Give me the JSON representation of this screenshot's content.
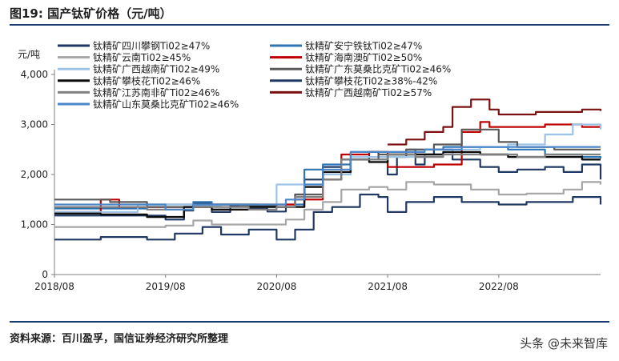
{
  "title": "图19: 国产钛矿价格（元/吨）",
  "source": "资料来源：百川盈孚，国信证券经济研究所整理",
  "watermark": "头条 @未来智库",
  "chart_data": {
    "type": "line",
    "title": "图19: 国产钛矿价格（元/吨）",
    "xlabel": "",
    "ylabel": "元/吨",
    "ylim": [
      0,
      4000
    ],
    "xlim": [
      "2018-08",
      "2023-07"
    ],
    "x_ticks": [
      "2018/08",
      "2019/08",
      "2020/08",
      "2021/08",
      "2022/08"
    ],
    "y_ticks": [
      "0",
      "1,000",
      "2,000",
      "3,000",
      "4,000"
    ],
    "grid": false,
    "legend_position": "top-left",
    "series": [
      {
        "name": "钛精矿四川攀钢Ti02≥47%",
        "color": "#1f3864",
        "width": 2.2,
        "points": [
          [
            "2018-08",
            1180
          ],
          [
            "2019-03",
            1180
          ],
          [
            "2019-08",
            1100
          ],
          [
            "2019-10",
            1280
          ],
          [
            "2019-11",
            1420
          ],
          [
            "2020-01",
            1250
          ],
          [
            "2020-03",
            1380
          ],
          [
            "2020-05",
            1320
          ],
          [
            "2020-07",
            1260
          ],
          [
            "2020-09",
            1350
          ],
          [
            "2020-10",
            1600
          ],
          [
            "2020-11",
            1900
          ],
          [
            "2021-01",
            2150
          ],
          [
            "2021-03",
            2300
          ],
          [
            "2021-05",
            2300
          ],
          [
            "2021-06",
            2450
          ],
          [
            "2021-07",
            2300
          ],
          [
            "2021-08",
            2000
          ],
          [
            "2021-09",
            2350
          ],
          [
            "2021-10",
            2500
          ],
          [
            "2021-11",
            2200
          ],
          [
            "2021-12",
            2400
          ],
          [
            "2022-01",
            2500
          ],
          [
            "2022-03",
            2300
          ],
          [
            "2022-06",
            2150
          ],
          [
            "2022-08",
            2050
          ],
          [
            "2022-10",
            2100
          ],
          [
            "2023-01",
            2150
          ],
          [
            "2023-03",
            2050
          ],
          [
            "2023-05",
            2200
          ],
          [
            "2023-07",
            1900
          ]
        ]
      },
      {
        "name": "钛精矿安宁铁钛Ti02≥47%",
        "color": "#2e75b6",
        "width": 2.2,
        "points": [
          [
            "2018-08",
            1320
          ],
          [
            "2019-02",
            1320
          ],
          [
            "2019-06",
            1400
          ],
          [
            "2019-11",
            1450
          ],
          [
            "2020-01",
            1400
          ],
          [
            "2020-06",
            1350
          ],
          [
            "2020-09",
            1400
          ],
          [
            "2020-11",
            2100
          ],
          [
            "2021-01",
            2200
          ],
          [
            "2021-04",
            2450
          ],
          [
            "2021-08",
            2450
          ],
          [
            "2021-11",
            2500
          ],
          [
            "2022-02",
            2550
          ],
          [
            "2022-06",
            2550
          ],
          [
            "2022-09",
            2500
          ],
          [
            "2023-01",
            2400
          ],
          [
            "2023-05",
            2350
          ],
          [
            "2023-07",
            2320
          ]
        ]
      },
      {
        "name": "钛精矿云南Ti02≥45%",
        "color": "#a6a6a6",
        "width": 2.2,
        "points": [
          [
            "2018-08",
            950
          ],
          [
            "2019-02",
            950
          ],
          [
            "2019-08",
            980
          ],
          [
            "2019-11",
            1080
          ],
          [
            "2020-01",
            1000
          ],
          [
            "2020-05",
            1000
          ],
          [
            "2020-09",
            1100
          ],
          [
            "2020-11",
            1300
          ],
          [
            "2021-01",
            1450
          ],
          [
            "2021-03",
            1700
          ],
          [
            "2021-06",
            1750
          ],
          [
            "2021-08",
            1700
          ],
          [
            "2021-10",
            1850
          ],
          [
            "2022-01",
            1800
          ],
          [
            "2022-05",
            1700
          ],
          [
            "2022-08",
            1600
          ],
          [
            "2022-11",
            1620
          ],
          [
            "2023-03",
            1700
          ],
          [
            "2023-05",
            1850
          ],
          [
            "2023-07",
            1800
          ]
        ]
      },
      {
        "name": "钛精矿海南澳矿Ti02≥50%",
        "color": "#c00000",
        "width": 2.2,
        "points": [
          [
            "2018-08",
            1250
          ],
          [
            "2018-12",
            1250
          ],
          [
            "2019-01",
            1500
          ],
          [
            "2019-03",
            1350
          ],
          [
            "2019-08",
            1350
          ],
          [
            "2020-01",
            1400
          ],
          [
            "2020-08",
            1400
          ],
          [
            "2020-10",
            1500
          ],
          [
            "2021-01",
            1900
          ],
          [
            "2021-03",
            2400
          ],
          [
            "2021-06",
            2450
          ],
          [
            "2021-08",
            2150
          ],
          [
            "2021-11",
            2150
          ],
          [
            "2022-01",
            2200
          ],
          [
            "2022-04",
            2850
          ],
          [
            "2022-06",
            3050
          ],
          [
            "2022-07",
            2950
          ],
          [
            "2022-09",
            2950
          ],
          [
            "2023-01",
            3000
          ],
          [
            "2023-05",
            2950
          ],
          [
            "2023-07",
            2980
          ]
        ]
      },
      {
        "name": "钛精矿广西越南矿Ti02≥49%",
        "color": "#9dc3e6",
        "width": 2.2,
        "points": [
          [
            "2018-08",
            1250
          ],
          [
            "2019-02",
            1250
          ],
          [
            "2019-05",
            1400
          ],
          [
            "2019-11",
            1380
          ],
          [
            "2020-02",
            1350
          ],
          [
            "2020-07",
            1350
          ],
          [
            "2020-08",
            1800
          ],
          [
            "2020-11",
            1800
          ],
          [
            "2021-01",
            2000
          ],
          [
            "2021-04",
            2350
          ],
          [
            "2021-08",
            2350
          ],
          [
            "2021-12",
            2400
          ],
          [
            "2022-03",
            2500
          ],
          [
            "2022-06",
            2550
          ],
          [
            "2022-09",
            2600
          ],
          [
            "2023-01",
            2800
          ],
          [
            "2023-04",
            3000
          ],
          [
            "2023-07",
            2900
          ]
        ]
      },
      {
        "name": "钛精矿广东莫桑比克矿Ti02≥46%",
        "color": "#595959",
        "width": 2.2,
        "points": [
          [
            "2018-08",
            1500
          ],
          [
            "2019-02",
            1450
          ],
          [
            "2019-06",
            1350
          ],
          [
            "2019-11",
            1400
          ],
          [
            "2020-04",
            1380
          ],
          [
            "2020-08",
            1350
          ],
          [
            "2020-10",
            1600
          ],
          [
            "2021-01",
            1900
          ],
          [
            "2021-03",
            2300
          ],
          [
            "2021-07",
            2400
          ],
          [
            "2021-10",
            2500
          ],
          [
            "2022-01",
            2600
          ],
          [
            "2022-04",
            2900
          ],
          [
            "2022-06",
            2900
          ],
          [
            "2022-08",
            2650
          ],
          [
            "2022-10",
            2550
          ],
          [
            "2023-02",
            2500
          ],
          [
            "2023-07",
            2500
          ]
        ]
      },
      {
        "name": "钛精矿攀枝花Ti02≥46%",
        "color": "#0d0d0d",
        "width": 2.4,
        "points": [
          [
            "2018-08",
            1220
          ],
          [
            "2019-01",
            1200
          ],
          [
            "2019-06",
            1150
          ],
          [
            "2019-10",
            1350
          ],
          [
            "2020-01",
            1300
          ],
          [
            "2020-05",
            1350
          ],
          [
            "2020-09",
            1350
          ],
          [
            "2020-11",
            1750
          ],
          [
            "2021-01",
            2050
          ],
          [
            "2021-04",
            2300
          ],
          [
            "2021-06",
            2250
          ],
          [
            "2021-08",
            2400
          ],
          [
            "2021-11",
            2400
          ],
          [
            "2022-02",
            2450
          ],
          [
            "2022-06",
            2400
          ],
          [
            "2022-09",
            2350
          ],
          [
            "2023-01",
            2350
          ],
          [
            "2023-05",
            2300
          ],
          [
            "2023-07",
            2300
          ]
        ]
      },
      {
        "name": "钛精矿攀枝花Ti02≥38%-42%",
        "color": "#203864",
        "width": 2.2,
        "points": [
          [
            "2018-08",
            700
          ],
          [
            "2019-01",
            750
          ],
          [
            "2019-06",
            700
          ],
          [
            "2019-09",
            820
          ],
          [
            "2019-12",
            950
          ],
          [
            "2020-02",
            800
          ],
          [
            "2020-05",
            900
          ],
          [
            "2020-08",
            700
          ],
          [
            "2020-10",
            900
          ],
          [
            "2020-12",
            1250
          ],
          [
            "2021-02",
            1350
          ],
          [
            "2021-05",
            1600
          ],
          [
            "2021-07",
            1550
          ],
          [
            "2021-08",
            1250
          ],
          [
            "2021-10",
            1450
          ],
          [
            "2022-01",
            1550
          ],
          [
            "2022-04",
            1450
          ],
          [
            "2022-08",
            1400
          ],
          [
            "2022-11",
            1450
          ],
          [
            "2023-04",
            1550
          ],
          [
            "2023-06",
            1550
          ],
          [
            "2023-07",
            1400
          ]
        ]
      },
      {
        "name": "钛精矿江苏南非矿Ti02≥46%",
        "color": "#7f7f7f",
        "width": 2.2,
        "points": [
          [
            "2018-08",
            1350
          ],
          [
            "2019-02",
            1350
          ],
          [
            "2019-06",
            1300
          ],
          [
            "2019-11",
            1350
          ],
          [
            "2020-05",
            1300
          ],
          [
            "2020-08",
            1350
          ],
          [
            "2020-10",
            1550
          ],
          [
            "2021-01",
            1900
          ],
          [
            "2021-03",
            2300
          ],
          [
            "2021-08",
            2400
          ],
          [
            "2021-11",
            2350
          ],
          [
            "2022-02",
            2400
          ],
          [
            "2022-06",
            2400
          ],
          [
            "2022-10",
            2350
          ],
          [
            "2023-01",
            2400
          ],
          [
            "2023-05",
            2400
          ],
          [
            "2023-07",
            2400
          ]
        ]
      },
      {
        "name": "钛精矿广西越南矿Ti02≥57%",
        "color": "#7b1010",
        "width": 2.2,
        "points": [
          [
            "2021-08",
            2600
          ],
          [
            "2021-10",
            2700
          ],
          [
            "2021-12",
            2850
          ],
          [
            "2022-02",
            2950
          ],
          [
            "2022-03",
            3350
          ],
          [
            "2022-05",
            3500
          ],
          [
            "2022-07",
            3300
          ],
          [
            "2022-08",
            3200
          ],
          [
            "2022-12",
            3250
          ],
          [
            "2023-03",
            3250
          ],
          [
            "2023-05",
            3300
          ],
          [
            "2023-07",
            3270
          ]
        ]
      },
      {
        "name": "钛精矿山东莫桑比克矿Ti02≥46%",
        "color": "#4a86c8",
        "width": 2.2,
        "points": [
          [
            "2018-08",
            1400
          ],
          [
            "2019-03",
            1400
          ],
          [
            "2019-08",
            1300
          ],
          [
            "2019-11",
            1400
          ],
          [
            "2020-06",
            1400
          ],
          [
            "2020-09",
            1500
          ],
          [
            "2020-11",
            1800
          ],
          [
            "2021-01",
            2100
          ],
          [
            "2021-04",
            2450
          ],
          [
            "2021-08",
            2450
          ],
          [
            "2021-12",
            2500
          ],
          [
            "2022-04",
            2550
          ],
          [
            "2022-08",
            2550
          ],
          [
            "2022-12",
            2550
          ],
          [
            "2023-04",
            2550
          ],
          [
            "2023-07",
            2550
          ]
        ]
      }
    ]
  }
}
